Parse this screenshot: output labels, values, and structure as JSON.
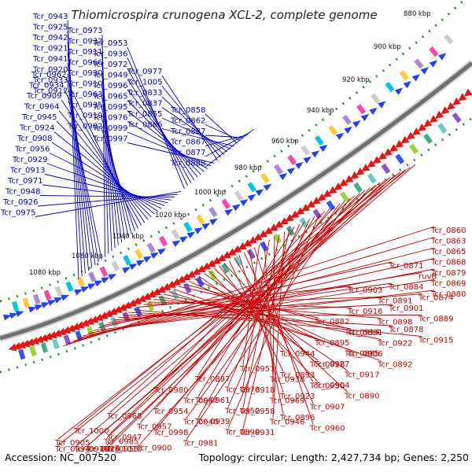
{
  "title": "Thiomicrospira crunogena XCL-2, complete genome",
  "footer": {
    "accession": "Accession: NC_007520",
    "info": "Topology: circular; Length: 2,427,734 bp; Genes: 2,250"
  },
  "colors": {
    "forward_label": "#0000cc",
    "reverse_label": "#cc0000",
    "forward_arrow": "#1f3fff",
    "reverse_arrow": "#ee1111",
    "backbone": "#7a7a7a",
    "tick": "#2e8b2e"
  },
  "kbp_labels": [
    "880 kbp",
    "900 kbp",
    "920 kbp",
    "940 kbp",
    "960 kbp",
    "980 kbp",
    "1000 kbp",
    "1020 kbp",
    "1040 kbp",
    "1060 kbp",
    "1080 kbp"
  ],
  "forward_genes": [
    "Tcr_0943",
    "Tcr_0925",
    "Tcr_0942",
    "Tcr_0921",
    "Tcr_0941",
    "Tcr_0920",
    "Tcr_0933",
    "Tcr_0912",
    "Tcr_0973",
    "Tcr_0932",
    "Tcr_0911",
    "Tcr_0966",
    "Tcr_0930",
    "Tcr_0910",
    "Tcr_0963",
    "Tcr_0935",
    "Tcr_0919",
    "Tcr_0902",
    "Tcr_0962",
    "Tcr_0934",
    "Tcr_0909",
    "Tcr_0964",
    "Tcr_0945",
    "Tcr_0924",
    "Tcr_0908",
    "Tcr_0956",
    "Tcr_0929",
    "Tcr_0913",
    "Tcr_0971",
    "Tcr_0948",
    "Tcr_0926",
    "Tcr_0975",
    "Tcr_0953",
    "Tcr_0936",
    "Tcr_0972",
    "Tcr_0949",
    "Tcr_0996",
    "Tcr_0965",
    "Tcr_0995",
    "Tcr_0976",
    "Tcr_0999",
    "Tcr_0997",
    "Tcr_0977",
    "Tcr_1005",
    "Tcr_0833",
    "Tcr_0837",
    "Tcr_0855",
    "Tcr_0866",
    "Tcr_0858",
    "Tcr_0862",
    "Tcr_0887",
    "Tcr_0867",
    "Tcr_0877",
    "Tcr_0888"
  ],
  "reverse_genes": [
    "Tcr_0860",
    "Tcr_0863",
    "Tcr_0865",
    "Tcr_0868",
    "Tcr_0879",
    "Tcr_0869",
    "Tcr_0880",
    "Tcr_0871",
    "ruvB",
    "Tcr_0884",
    "Tcr_0874",
    "Tcr_0901",
    "Tcr_0889",
    "Tcr_0878",
    "Tcr_0915",
    "Tcr_0903",
    "Tcr_0891",
    "Tcr_0916",
    "Tcr_0898",
    "Tcr_0881",
    "Tcr_0922",
    "Tcr_0906",
    "Tcr_0892",
    "Tcr_0882",
    "Tcr_0914",
    "Tcr_0895",
    "Tcr_0885",
    "Tcr_0927",
    "Tcr_0917",
    "Tcr_0904",
    "Tcr_0890",
    "Tcr_0944",
    "Tcr_0928",
    "Tcr_0893",
    "Tcr_0950",
    "Tcr_0923",
    "Tcr_0907",
    "Tcr_0896",
    "Tcr_0960",
    "Tcr_0951",
    "Tcr_0938",
    "Tcr_0918",
    "Tcr_0969",
    "Tcr_0958",
    "Tcr_0946",
    "Tcr_0931",
    "Tcr_0897",
    "Tcr_0978",
    "Tcr_0961",
    "Tcr_0952",
    "Tcr_0939",
    "Tcr_0899",
    "Tcr_0980",
    "Tcr_0967",
    "Tcr_0954",
    "Tcr_0940",
    "Tcr_0998",
    "Tcr_0981",
    "Tcr_0968",
    "Tcr_0957",
    "Tcr_0947",
    "Tcr_0900",
    "Tcr_1010",
    "Tcr_1000",
    "Tcr_0985",
    "Tcr_0970",
    "Tcr_0955",
    "Tcr_0905",
    "Tcr_1016",
    "Tcr_0994",
    "Tcr_0979"
  ]
}
